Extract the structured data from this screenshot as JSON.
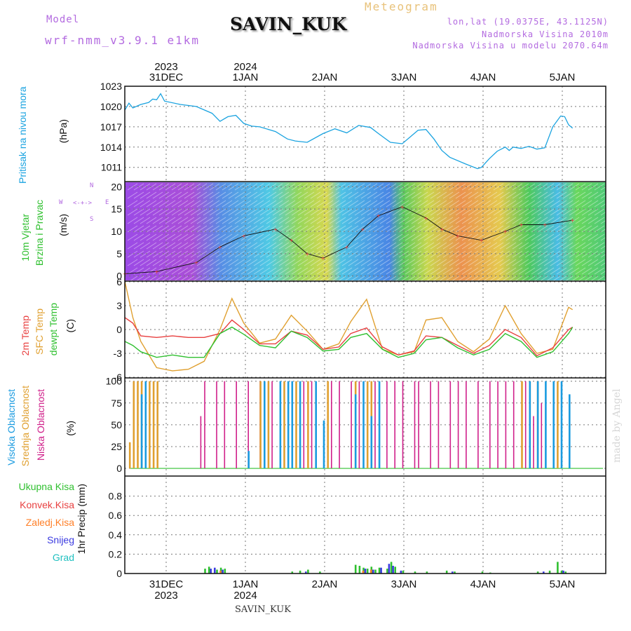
{
  "header": {
    "model_label": "Model",
    "model_code": "wrf-nmm_v3.9.1 e1km",
    "station": "SAVIN_KUK",
    "title": "Meteogram",
    "coords": "lon,lat (19.0375E, 43.1125N)",
    "altitude": "Nadmorska Visina 2010m",
    "model_altitude": "Nadmorska Visina u modelu 2070.64m",
    "watermark": "made by Angel",
    "bottom_station": "SAVIN_KUK"
  },
  "time_axis": {
    "top_years": [
      {
        "text": "2023",
        "day": 0
      },
      {
        "text": "2024",
        "day": 1
      }
    ],
    "days": [
      "31DEC",
      "1JAN",
      "2JAN",
      "3JAN",
      "4JAN",
      "5JAN"
    ],
    "bottom_years": [
      {
        "text": "2023",
        "day": 0
      },
      {
        "text": "2024",
        "day": 1
      }
    ]
  },
  "colors": {
    "pressure": "#1aa3e0",
    "temp2m": "#e84040",
    "sfc": "#e0a030",
    "dewpt": "#30c030",
    "high_cloud": "#1a9be0",
    "mid_cloud": "#e0a030",
    "low_cloud": "#d0208a",
    "rain_total": "#30c030",
    "rain_conv": "#e84040",
    "rain_frz": "#ff7f27",
    "snow": "#3a3ae0",
    "graupel": "#20c0c0",
    "wind_label": "#30c030"
  },
  "panels": {
    "pressure": {
      "label": "Pritisak na nivou mora",
      "unit": "(hPa)"
    },
    "wind": {
      "label1": "10m Vjetar",
      "label2": "Brzina i Pravac",
      "unit": "(m/s)",
      "compass": {
        "n": "N",
        "s": "S",
        "e": "E",
        "w": "W"
      }
    },
    "temp": {
      "label_2m": "2m Temp",
      "label_sfc": "SFC Temp",
      "label_dew": "dewpt Temp",
      "unit": "(C)"
    },
    "cloud": {
      "label_high": "Visoka Oblacnost",
      "label_mid": "Srednja Oblacnost",
      "label_low": "Niska Oblacnost",
      "unit": "(%)"
    },
    "precip": {
      "label": "1hr Precip (mm)",
      "legend": [
        "Ukupna Kisa",
        "Konvek.Kisa",
        "Zaledj.Kisa",
        "Snijeg",
        "Grad"
      ]
    }
  },
  "chart_data": [
    {
      "type": "line",
      "name": "pressure",
      "ylabel": "(hPa)",
      "ylim": [
        1009,
        1023
      ],
      "yticks": [
        1011,
        1014,
        1017,
        1020,
        1023
      ],
      "x_days": [
        0.0,
        0.05,
        0.1,
        0.2,
        0.3,
        0.35,
        0.4,
        0.45,
        0.5,
        0.7,
        0.9,
        1.1,
        1.2,
        1.3,
        1.4,
        1.5,
        1.6,
        1.7,
        1.9,
        2.05,
        2.15,
        2.3,
        2.5,
        2.65,
        2.8,
        2.95,
        3.1,
        3.2,
        3.35,
        3.5,
        3.7,
        3.8,
        3.9,
        4.0,
        4.1,
        4.3,
        4.45,
        4.5,
        4.6,
        4.7,
        4.8,
        4.85,
        4.9,
        5.0,
        5.1,
        5.2,
        5.3,
        5.4,
        5.5,
        5.55,
        5.6,
        5.65
      ],
      "values": [
        1019.5,
        1020.5,
        1019.8,
        1020.3,
        1020.6,
        1021.1,
        1021.0,
        1021.9,
        1020.8,
        1020.3,
        1020.0,
        1019.0,
        1017.8,
        1018.5,
        1018.7,
        1017.5,
        1017.1,
        1017.0,
        1016.3,
        1015.2,
        1014.9,
        1014.7,
        1016.0,
        1016.7,
        1016.1,
        1017.2,
        1016.9,
        1016.0,
        1014.7,
        1014.5,
        1016.5,
        1016.6,
        1015.2,
        1013.5,
        1012.5,
        1011.5,
        1010.8,
        1011.0,
        1012.3,
        1013.4,
        1014.0,
        1013.5,
        1014.0,
        1013.8,
        1014.1,
        1013.7,
        1013.9,
        1017.0,
        1018.6,
        1018.5,
        1017.3,
        1016.8
      ]
    },
    {
      "type": "line",
      "name": "temperature",
      "ylabel": "(C)",
      "ylim": [
        -6,
        6
      ],
      "yticks": [
        -6,
        -3,
        0,
        3,
        6
      ],
      "x_days": [
        0.0,
        0.1,
        0.2,
        0.4,
        0.6,
        0.8,
        1.0,
        1.2,
        1.35,
        1.5,
        1.7,
        1.9,
        2.1,
        2.3,
        2.5,
        2.7,
        2.85,
        3.05,
        3.25,
        3.45,
        3.65,
        3.8,
        4.0,
        4.2,
        4.4,
        4.6,
        4.8,
        5.0,
        5.2,
        5.4,
        5.6,
        5.65
      ],
      "series": [
        {
          "name": "SFC Temp",
          "key": "sfc",
          "values": [
            6.0,
            1.5,
            -1.5,
            -4.8,
            -5.2,
            -5.0,
            -4.0,
            0.0,
            3.9,
            0.8,
            -1.7,
            -1.2,
            1.8,
            -0.2,
            -2.5,
            -1.8,
            1.0,
            3.8,
            -2.5,
            -3.2,
            -2.8,
            1.2,
            1.5,
            -1.5,
            -2.8,
            -1.2,
            3.0,
            -0.5,
            -3.0,
            -2.5,
            2.8,
            2.5
          ]
        },
        {
          "name": "2m Temp",
          "key": "temp2m",
          "values": [
            1.5,
            0.8,
            -0.8,
            -1.0,
            -0.8,
            -1.0,
            -1.0,
            -0.5,
            1.2,
            0.0,
            -1.8,
            -1.8,
            -0.2,
            -0.7,
            -2.5,
            -2.2,
            -0.5,
            0.2,
            -2.2,
            -3.2,
            -2.7,
            -0.8,
            -1.0,
            -2.0,
            -3.0,
            -2.0,
            0.0,
            -1.0,
            -3.3,
            -2.3,
            0.0,
            0.3
          ]
        },
        {
          "name": "dewpt Temp",
          "key": "dewpt",
          "values": [
            -1.5,
            -2.0,
            -2.8,
            -3.5,
            -3.2,
            -3.5,
            -3.5,
            -0.5,
            0.3,
            -0.6,
            -2.0,
            -2.3,
            -0.2,
            -1.0,
            -2.7,
            -2.5,
            -1.0,
            -0.5,
            -2.5,
            -3.5,
            -3.0,
            -1.3,
            -1.0,
            -2.3,
            -3.2,
            -2.5,
            -0.5,
            -1.5,
            -3.5,
            -2.8,
            -0.5,
            0.3
          ]
        }
      ]
    },
    {
      "type": "line",
      "name": "wind_speed",
      "ylabel": "(m/s)",
      "ylim": [
        -1,
        21
      ],
      "yticks": [
        0,
        5,
        10,
        15,
        20
      ],
      "x_days": [
        0.0,
        0.4,
        0.9,
        1.2,
        1.5,
        1.9,
        2.1,
        2.3,
        2.5,
        2.8,
        3.0,
        3.2,
        3.5,
        3.8,
        4.0,
        4.2,
        4.5,
        4.8,
        5.0,
        5.3,
        5.65
      ],
      "values": [
        0.5,
        1.0,
        3.0,
        6.5,
        9.0,
        10.5,
        8.0,
        5.0,
        4.0,
        6.5,
        10.5,
        13.5,
        15.5,
        13.0,
        10.5,
        9.0,
        8.0,
        10.0,
        11.5,
        11.5,
        12.5
      ]
    },
    {
      "type": "bar",
      "name": "cloud_cover",
      "ylabel": "(%)",
      "ylim": [
        0,
        100
      ],
      "yticks": [
        0,
        25,
        50,
        75,
        100
      ],
      "series": [
        {
          "name": "Niska Oblacnost",
          "key": "low_cloud",
          "x_days": [
            0.0,
            0.95,
            1.0,
            1.15,
            1.25,
            1.4,
            1.55,
            1.7,
            1.85,
            2.1,
            2.25,
            2.35,
            2.6,
            2.7,
            2.85,
            2.95,
            3.15,
            3.3,
            3.4,
            3.5,
            3.65,
            3.7,
            3.85,
            3.95,
            4.1,
            4.2,
            4.3,
            4.45,
            4.6,
            4.7,
            4.8,
            4.9,
            5.05,
            5.15,
            5.25
          ],
          "values": [
            0,
            60,
            100,
            100,
            100,
            100,
            100,
            100,
            100,
            100,
            100,
            100,
            100,
            100,
            100,
            100,
            100,
            100,
            100,
            100,
            100,
            100,
            100,
            100,
            100,
            100,
            100,
            100,
            100,
            100,
            100,
            100,
            100,
            60,
            75
          ]
        },
        {
          "name": "Srednja Oblacnost",
          "key": "mid_cloud",
          "x_days": [
            0.05,
            0.1,
            0.15,
            0.2,
            0.3,
            0.35,
            0.4,
            1.7,
            1.8,
            2.0,
            2.15,
            2.3,
            2.55,
            2.9,
            3.05,
            3.1,
            5.0,
            5.1,
            5.2,
            5.45
          ],
          "values": [
            30,
            100,
            100,
            100,
            100,
            100,
            100,
            100,
            100,
            100,
            100,
            100,
            100,
            100,
            100,
            100,
            100,
            100,
            100,
            100
          ]
        },
        {
          "name": "Visoka Oblacnost",
          "key": "high_cloud",
          "x_days": [
            0.2,
            0.25,
            1.55,
            1.75,
            1.95,
            2.05,
            2.1,
            2.2,
            2.4,
            2.5,
            2.9,
            3.0,
            3.1,
            3.2,
            5.1,
            5.2,
            5.3,
            5.4,
            5.5,
            5.6
          ],
          "values": [
            85,
            100,
            20,
            100,
            100,
            100,
            100,
            100,
            100,
            55,
            85,
            100,
            60,
            100,
            100,
            100,
            100,
            100,
            100,
            85
          ]
        }
      ]
    },
    {
      "type": "bar",
      "name": "precipitation",
      "ylabel": "1hr Precip (mm)",
      "ylim": [
        0,
        1.0
      ],
      "yticks": [
        0,
        0.2,
        0.4,
        0.6,
        0.8
      ],
      "series": [
        {
          "name": "Ukupna Kisa",
          "key": "rain_total",
          "x_days": [
            1.0,
            1.05,
            1.15,
            1.2,
            1.25,
            2.1,
            2.2,
            2.3,
            2.45,
            2.9,
            2.95,
            3.0,
            3.05,
            3.1,
            3.15,
            3.2,
            3.3,
            3.35,
            3.4,
            3.5,
            3.65,
            3.8,
            4.05,
            4.15,
            4.5,
            4.6,
            5.2,
            5.35,
            5.45,
            5.5,
            5.55
          ],
          "values": [
            0.05,
            0.07,
            0.04,
            0.06,
            0.05,
            0.02,
            0.03,
            0.04,
            0.02,
            0.09,
            0.08,
            0.06,
            0.05,
            0.07,
            0.04,
            0.06,
            0.05,
            0.12,
            0.07,
            0.03,
            0.02,
            0.02,
            0.03,
            0.02,
            0.02,
            0.01,
            0.02,
            0.03,
            0.12,
            0.03,
            0.02
          ]
        },
        {
          "name": "Snijeg",
          "key": "snow",
          "x_days": [
            1.05,
            1.1,
            1.2,
            2.25,
            3.0,
            3.1,
            3.2,
            3.3,
            3.35,
            3.45,
            4.1,
            5.25,
            5.5
          ],
          "values": [
            0.05,
            0.06,
            0.04,
            0.02,
            0.05,
            0.04,
            0.06,
            0.1,
            0.08,
            0.03,
            0.02,
            0.02,
            0.03
          ]
        },
        {
          "name": "Zaledj.Kisa",
          "key": "rain_frz",
          "x_days": [
            1.15,
            2.95,
            3.05
          ],
          "values": [
            0.03,
            0.03,
            0.04
          ]
        }
      ]
    }
  ]
}
